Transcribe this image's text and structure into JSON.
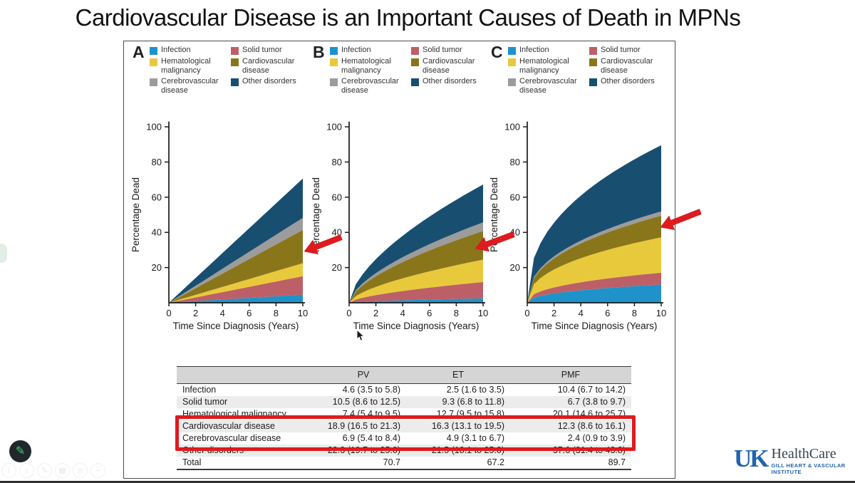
{
  "title": "Cardiovascular Disease is an Important Causes of Death in MPNs",
  "colors": {
    "infection": "#1f93c9",
    "solid_tumor": "#bd5f66",
    "hematological": "#e9c93c",
    "cardiovascular": "#8a761a",
    "cerebrovascular": "#9c9c9c",
    "other": "#184f70",
    "annotation_red": "#de1b1e",
    "table_header_bg": "#d5d5d5"
  },
  "chart_data": {
    "type": "area",
    "stacked": true,
    "xlabel": "Time Since Diagnosis (Years)",
    "ylabel": "Percentage Dead",
    "xlim": [
      0,
      10
    ],
    "ylim": [
      0,
      100
    ],
    "xticks": [
      0,
      2,
      4,
      6,
      8,
      10
    ],
    "yticks": [
      20,
      40,
      60,
      80,
      100
    ],
    "grid": false,
    "legend_position": "top",
    "legend": [
      {
        "label": "Infection",
        "color": "#1f93c9"
      },
      {
        "label": "Solid tumor",
        "color": "#bd5f66"
      },
      {
        "label": "Hematological malignancy",
        "color": "#e9c93c"
      },
      {
        "label": "Cardiovascular disease",
        "color": "#8a761a"
      },
      {
        "label": "Cerebrovascular disease",
        "color": "#9c9c9c"
      },
      {
        "label": "Other disorders",
        "color": "#184f70"
      }
    ],
    "panels": [
      {
        "label": "A",
        "cohort": "PV",
        "curvature_exponent": 1.0,
        "total_at_year_10": 70.7,
        "series_values_at_year_10": [
          4.6,
          10.5,
          7.4,
          18.9,
          6.9,
          22.3
        ],
        "annotation": "red arrow points to Cardiovascular disease layer"
      },
      {
        "label": "B",
        "cohort": "ET",
        "curvature_exponent": 0.62,
        "total_at_year_10": 67.2,
        "series_values_at_year_10": [
          2.5,
          9.3,
          12.7,
          16.3,
          4.9,
          21.5
        ],
        "annotation": "red arrow points to Cardiovascular disease layer"
      },
      {
        "label": "C",
        "cohort": "PMF",
        "curvature_exponent": 0.42,
        "total_at_year_10": 89.7,
        "series_values_at_year_10": [
          10.4,
          6.7,
          20.1,
          12.3,
          2.4,
          37.6
        ],
        "annotation": "red arrow points to Cardiovascular disease layer"
      }
    ]
  },
  "table": {
    "columns": [
      "PV",
      "ET",
      "PMF"
    ],
    "rows": [
      {
        "label": "Infection",
        "pv": "4.6 (3.5 to 5.8)",
        "et": "2.5 (1.6 to 3.5)",
        "pmf": "10.4 (6.7 to 14.2)"
      },
      {
        "label": "Solid tumor",
        "pv": "10.5 (8.6 to 12.5)",
        "et": "9.3 (6.8 to 11.8)",
        "pmf": "6.7 (3.8 to 9.7)"
      },
      {
        "label": "Hematological malignancy",
        "pv": "7.4 (5.4 to 9.5)",
        "et": "12.7 (9.5 to 15.8)",
        "pmf": "20.1 (14.6 to 25.7)"
      },
      {
        "label": "Cardiovascular disease",
        "pv": "18.9 (16.5 to 21.3)",
        "et": "16.3 (13.1 to 19.5)",
        "pmf": "12.3 (8.6 to 16.1)"
      },
      {
        "label": "Cerebrovascular disease",
        "pv": "6.9 (5.4 to 8.4)",
        "et": "4.9 (3.1 to 6.7)",
        "pmf": "2.4 (0.9 to 3.9)"
      },
      {
        "label": "Other disorders",
        "pv": "22.3 (19.7 to 25.0)",
        "et": "21.5 (18.1 to 25.0)",
        "pmf": "37.6 (31.4 to 43.8)"
      },
      {
        "label": "Total",
        "pv": "70.7",
        "et": "67.2",
        "pmf": "89.7"
      }
    ],
    "highlighted_rows": [
      "Cardiovascular disease",
      "Cerebrovascular disease"
    ]
  },
  "logo": {
    "uk": "UK",
    "healthcare": "HealthCare",
    "institute": "GILL HEART & VASCULAR INSTITUTE"
  },
  "annotation_tools": {
    "pencil_glyph": "✎",
    "faint_icons": [
      "i",
      "i",
      "✎",
      "▦",
      "◎",
      "−"
    ]
  }
}
